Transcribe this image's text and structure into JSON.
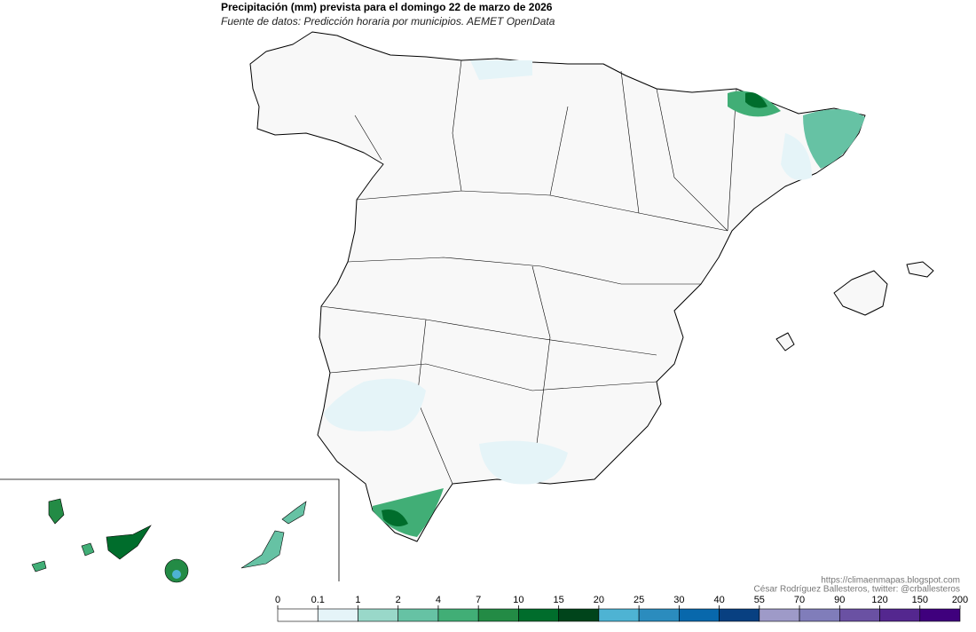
{
  "title": "Precipitación (mm) prevista para el domingo 22 de marzo de 2026",
  "subtitle": "Fuente de datos: Predicción horaria por municipios. AEMET OpenData",
  "credits": [
    "https://climaenmapas.blogspot.com",
    "César Rodríguez Ballesteros, twitter: @crballesteros"
  ],
  "legend": {
    "ticks": [
      0,
      0.1,
      1,
      2,
      4,
      7,
      10,
      15,
      20,
      25,
      30,
      40,
      55,
      70,
      90,
      120,
      150,
      200
    ],
    "colors": [
      "#ffffff",
      "#e5f4f8",
      "#99d8c9",
      "#66c2a4",
      "#41ae76",
      "#238b45",
      "#006d2c",
      "#00441b",
      "#4eb3d3",
      "#2b8cbe",
      "#0868ac",
      "#084081",
      "#9e9ac8",
      "#807dba",
      "#6a51a3",
      "#54278f",
      "#3f007d"
    ]
  }
}
